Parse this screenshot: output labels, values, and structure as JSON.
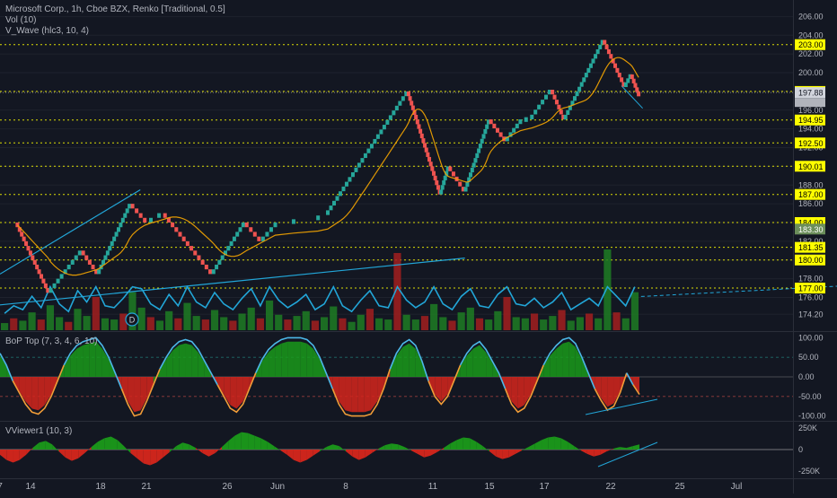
{
  "header": {
    "title": "Microsoft Corp., 1h, Cboe BZX, Renko [Traditional, 0.5]",
    "vol": "Vol (10)",
    "vwave": "V_Wave (hlc3, 10, 4)",
    "bop": "BoP Top (7, 3, 4, 6, 10)",
    "vviewer": "VViewer1 (10, 3)",
    "dividend_marker": "D"
  },
  "colors": {
    "background": "#131722",
    "up": "#26a69a",
    "down": "#ef5350",
    "level_line": "#ffff00",
    "trendline": "#22a6d8",
    "ma": "#f7a600",
    "bop_blue": "#4cb8e8",
    "bop_orange": "#f29d38",
    "fill_green": "#1a9a1a",
    "fill_red": "#d6261c",
    "volume_green": "#1e7d23",
    "volume_red": "#a31e1e"
  },
  "chart_data": [
    {
      "type": "renko",
      "title": "Microsoft Corp., 1h, Cboe BZX, Renko [Traditional, 0.5]",
      "ylim": [
        172.5,
        207
      ],
      "y_ticks": [
        174.2,
        176,
        178,
        180,
        182,
        184,
        186,
        188,
        190,
        192,
        194,
        196,
        198,
        200,
        202,
        204,
        206
      ],
      "x_tick_labels": [
        "14",
        "18",
        "21",
        "26",
        "Jun",
        "8",
        "11",
        "15",
        "17",
        "22",
        "25",
        "Jul",
        "7"
      ],
      "price_labels": [
        {
          "value": 203.0,
          "label": "203.00",
          "kind": "level"
        },
        {
          "value": 198.0,
          "label": "198.00",
          "kind": "level"
        },
        {
          "value": 197.88,
          "label": "197.88",
          "kind": "last"
        },
        {
          "value": 194.95,
          "label": "194.95",
          "kind": "level"
        },
        {
          "value": 192.5,
          "label": "192.50",
          "kind": "level"
        },
        {
          "value": 190.01,
          "label": "190.01",
          "kind": "level"
        },
        {
          "value": 187.0,
          "label": "187.00",
          "kind": "level"
        },
        {
          "value": 184.0,
          "label": "184.00",
          "kind": "level"
        },
        {
          "value": 183.3,
          "label": "183.30",
          "kind": "ma"
        },
        {
          "value": 181.35,
          "label": "181.35",
          "kind": "level"
        },
        {
          "value": 180.0,
          "label": "180.00",
          "kind": "level"
        },
        {
          "value": 177.0,
          "label": "177.00",
          "kind": "level"
        }
      ],
      "pivots": [
        {
          "x": 14,
          "y": 184
        },
        {
          "x": 16,
          "y": 176.5
        },
        {
          "x": 18,
          "y": 181
        },
        {
          "x": 19,
          "y": 178.5
        },
        {
          "x": 21,
          "y": 186
        },
        {
          "x": 22,
          "y": 184
        },
        {
          "x": 23,
          "y": 185
        },
        {
          "x": 26,
          "y": 178.5
        },
        {
          "x": 28,
          "y": 184
        },
        {
          "x": 29,
          "y": 182
        },
        {
          "x": 30,
          "y": 184
        },
        {
          "x": 32,
          "y": 184.2
        },
        {
          "x": 33,
          "y": 184.8
        },
        {
          "x": 38,
          "y": 198
        },
        {
          "x": 40,
          "y": 187
        },
        {
          "x": 40.5,
          "y": 190
        },
        {
          "x": 41.5,
          "y": 187.3
        },
        {
          "x": 43,
          "y": 195
        },
        {
          "x": 44,
          "y": 192.7
        },
        {
          "x": 45,
          "y": 195
        },
        {
          "x": 45.5,
          "y": 195
        },
        {
          "x": 46.8,
          "y": 198.2
        },
        {
          "x": 47.6,
          "y": 195
        },
        {
          "x": 50,
          "y": 203.5
        },
        {
          "x": 51.3,
          "y": 198.5
        },
        {
          "x": 51.7,
          "y": 199.8
        },
        {
          "x": 52.2,
          "y": 197.5
        }
      ]
    },
    {
      "type": "bar",
      "title": "Vol (10)",
      "series": [
        {
          "name": "Vol (10)",
          "values": [
            0.6,
            1,
            0.8,
            1.5,
            0.9,
            2.1,
            1.1,
            0.7,
            1.8,
            1.2,
            2.8,
            1,
            0.9,
            1.4,
            3.2,
            1.9,
            1.1,
            0.8,
            1.6,
            1,
            2.3,
            1.2,
            0.9,
            1.7,
            1.1,
            0.8,
            1.4,
            1.9,
            1,
            2.5,
            1.3,
            0.9,
            1.2,
            1.6,
            0.8,
            1.1,
            2,
            1,
            0.7,
            1.3,
            1.8,
            1,
            0.9,
            6.5,
            1.3,
            0.9,
            1.2,
            2.2,
            1.1,
            0.8,
            1.5,
            1.9,
            1,
            0.9,
            1.6,
            2.8,
            1.1,
            1,
            1.4,
            0.9,
            1.2,
            1.7,
            0.8,
            1.1,
            1.4,
            1,
            6.8,
            1.5,
            1,
            3.2
          ]
        }
      ]
    },
    {
      "type": "area",
      "title": "BoP Top (7, 3, 4, 6, 10)",
      "y_ticks": [
        "100.00",
        "50.00",
        "0.00",
        "-50.00",
        "-100.00"
      ],
      "ylim": [
        -110,
        110
      ],
      "series": [
        {
          "values": [
            60,
            30,
            -10,
            -40,
            -70,
            -90,
            -95,
            -80,
            -50,
            -10,
            30,
            60,
            80,
            90,
            95,
            100,
            80,
            50,
            10,
            -30,
            -70,
            -100,
            -95,
            -60,
            -20,
            20,
            50,
            75,
            90,
            95,
            90,
            70,
            40,
            10,
            -20,
            -50,
            -80,
            -90,
            -70,
            -30,
            10,
            45,
            70,
            85,
            95,
            100,
            100,
            100,
            95,
            80,
            50,
            10,
            -30,
            -70,
            -95,
            -100,
            -100,
            -100,
            -95,
            -70,
            -30,
            20,
            60,
            85,
            95,
            80,
            40,
            -10,
            -50,
            -70,
            -50,
            -10,
            30,
            60,
            80,
            90,
            70,
            40,
            10,
            -30,
            -70,
            -90,
            -80,
            -50,
            -10,
            30,
            60,
            80,
            95,
            100,
            85,
            50,
            10,
            -30,
            -60,
            -85,
            -75,
            -40,
            10,
            -20,
            -45
          ]
        }
      ]
    },
    {
      "type": "area",
      "title": "VViewer1 (10, 3)",
      "y_ticks": [
        "250K",
        "0",
        "-250K"
      ],
      "ylim": [
        -320,
        320
      ],
      "series": [
        {
          "values": [
            -60,
            -120,
            -150,
            -120,
            -60,
            20,
            80,
            100,
            60,
            -20,
            -90,
            -130,
            -100,
            -40,
            30,
            90,
            130,
            150,
            110,
            40,
            -40,
            -100,
            -160,
            -180,
            -150,
            -90,
            -30,
            40,
            80,
            60,
            20,
            -40,
            -80,
            -40,
            30,
            100,
            160,
            200,
            190,
            160,
            130,
            90,
            40,
            -10,
            -60,
            -120,
            -150,
            -120,
            -70,
            -20,
            30,
            60,
            40,
            -20,
            -80,
            -120,
            -90,
            -40,
            10,
            50,
            70,
            60,
            30,
            -10,
            -50,
            -90,
            -70,
            -30,
            20,
            70,
            110,
            140,
            130,
            90,
            40,
            -20,
            -80,
            -110,
            -90,
            -50,
            -10,
            30,
            70,
            110,
            140,
            150,
            130,
            90,
            40,
            -10,
            -50,
            -80,
            -60,
            -20,
            10,
            30,
            20,
            40,
            60
          ]
        }
      ]
    }
  ]
}
